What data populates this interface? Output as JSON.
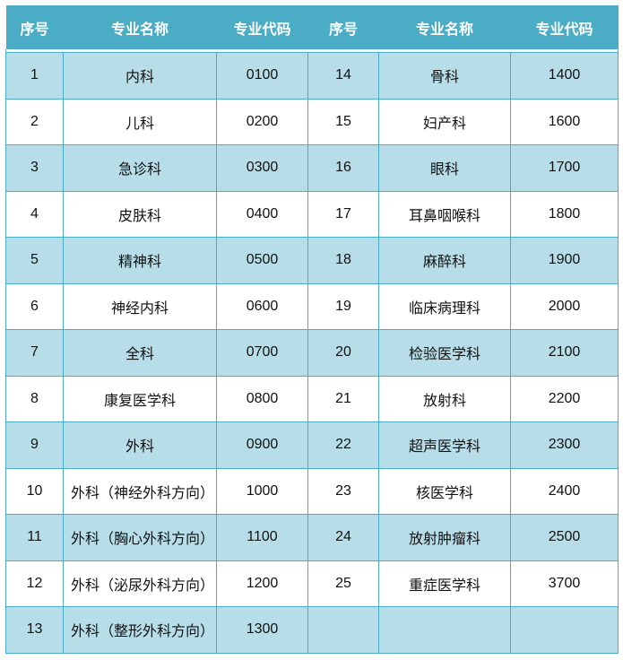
{
  "headers": [
    "序号",
    "专业名称",
    "专业代码",
    "序号",
    "专业名称",
    "专业代码"
  ],
  "colors": {
    "header_bg": "#4BACC6",
    "stripe_bg": "#B7DDE8",
    "border": "#4BACC6"
  },
  "rows": [
    [
      [
        "1",
        "内科",
        "0100"
      ],
      [
        "14",
        "骨科",
        "1400"
      ]
    ],
    [
      [
        "2",
        "儿科",
        "0200"
      ],
      [
        "15",
        "妇产科",
        "1600"
      ]
    ],
    [
      [
        "3",
        "急诊科",
        "0300"
      ],
      [
        "16",
        "眼科",
        "1700"
      ]
    ],
    [
      [
        "4",
        "皮肤科",
        "0400"
      ],
      [
        "17",
        "耳鼻咽喉科",
        "1800"
      ]
    ],
    [
      [
        "5",
        "精神科",
        "0500"
      ],
      [
        "18",
        "麻醉科",
        "1900"
      ]
    ],
    [
      [
        "6",
        "神经内科",
        "0600"
      ],
      [
        "19",
        "临床病理科",
        "2000"
      ]
    ],
    [
      [
        "7",
        "全科",
        "0700"
      ],
      [
        "20",
        "检验医学科",
        "2100"
      ]
    ],
    [
      [
        "8",
        "康复医学科",
        "0800"
      ],
      [
        "21",
        "放射科",
        "2200"
      ]
    ],
    [
      [
        "9",
        "外科",
        "0900"
      ],
      [
        "22",
        "超声医学科",
        "2300"
      ]
    ],
    [
      [
        "10",
        "外科（神经外科方向）",
        "1000"
      ],
      [
        "23",
        "核医学科",
        "2400"
      ]
    ],
    [
      [
        "11",
        "外科（胸心外科方向）",
        "1100"
      ],
      [
        "24",
        "放射肿瘤科",
        "2500"
      ]
    ],
    [
      [
        "12",
        "外科（泌尿外科方向）",
        "1200"
      ],
      [
        "25",
        "重症医学科",
        "3700"
      ]
    ],
    [
      [
        "13",
        "外科（整形外科方向）",
        "1300"
      ],
      [
        "",
        "",
        ""
      ]
    ]
  ]
}
